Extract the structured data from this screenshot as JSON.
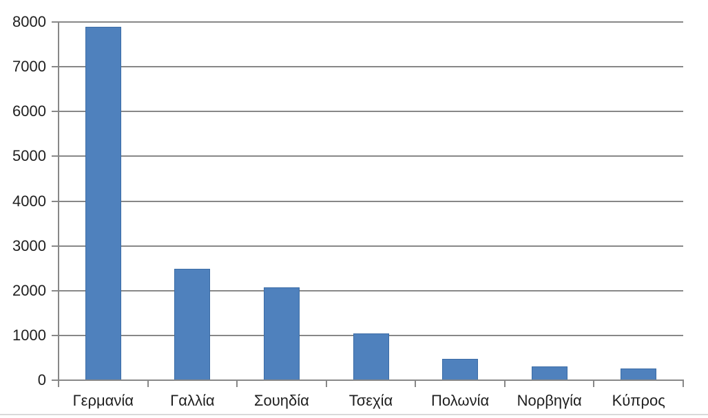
{
  "chart_data": {
    "type": "bar",
    "title": "",
    "xlabel": "",
    "ylabel": "",
    "categories": [
      "Γερμανία",
      "Γαλλία",
      "Σουηδία",
      "Τσεχία",
      "Πολωνία",
      "Νορβηγία",
      "Κύπρος"
    ],
    "values": [
      7900,
      2490,
      2080,
      1040,
      470,
      310,
      260
    ],
    "ylim": [
      0,
      8000
    ],
    "ytick_step": 1000,
    "ytick_labels": [
      "0",
      "1000",
      "2000",
      "3000",
      "4000",
      "5000",
      "6000",
      "7000",
      "8000"
    ],
    "grid": true,
    "legend": false,
    "colors": {
      "bar_fill": "#4F81BD",
      "bar_border": "#3A6BA5",
      "gridline": "#878787",
      "axis": "#878787",
      "tick": "#878787",
      "text": "#1f1f1f",
      "background": "#FFFFFF",
      "bottom_rule": "#D9D9D9"
    }
  }
}
